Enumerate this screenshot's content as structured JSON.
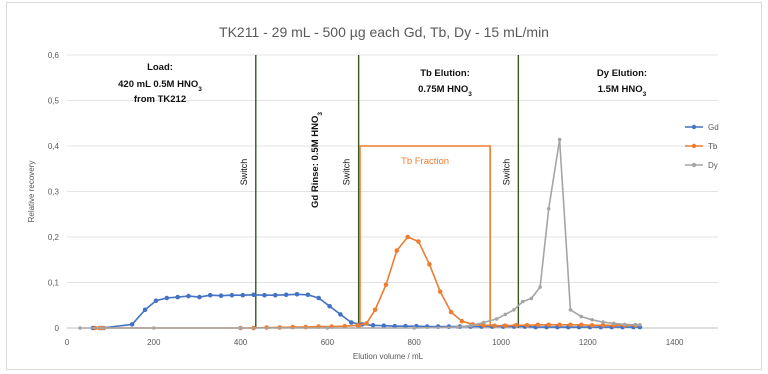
{
  "chart_data": {
    "type": "line",
    "title": "TK211 - 29 mL - 500 µg each Gd, Tb, Dy - 15 mL/min",
    "xlabel": "Elution volume / mL",
    "ylabel": "Relative recovery",
    "xlim": [
      0,
      1500
    ],
    "ylim": [
      0,
      0.6
    ],
    "x_ticks": [
      "0",
      "200",
      "400",
      "600",
      "800",
      "1000",
      "1200",
      "1400"
    ],
    "y_ticks": [
      "0",
      "0,1",
      "0,2",
      "0,3",
      "0,4",
      "0,5",
      "0,6"
    ],
    "grid": "horizontal",
    "legend_position": "right",
    "series": [
      {
        "name": "Gd",
        "color": "#4472C4",
        "points": [
          [
            60,
            0.0
          ],
          [
            80,
            0.0
          ],
          [
            150,
            0.008
          ],
          [
            180,
            0.04
          ],
          [
            205,
            0.06
          ],
          [
            230,
            0.066
          ],
          [
            255,
            0.068
          ],
          [
            280,
            0.07
          ],
          [
            305,
            0.068
          ],
          [
            330,
            0.072
          ],
          [
            355,
            0.071
          ],
          [
            380,
            0.072
          ],
          [
            405,
            0.072
          ],
          [
            430,
            0.073
          ],
          [
            455,
            0.072
          ],
          [
            480,
            0.072
          ],
          [
            505,
            0.073
          ],
          [
            530,
            0.074
          ],
          [
            555,
            0.073
          ],
          [
            580,
            0.066
          ],
          [
            605,
            0.048
          ],
          [
            630,
            0.03
          ],
          [
            655,
            0.012
          ],
          [
            680,
            0.008
          ],
          [
            705,
            0.006
          ],
          [
            730,
            0.005
          ],
          [
            755,
            0.004
          ],
          [
            780,
            0.004
          ],
          [
            805,
            0.004
          ],
          [
            830,
            0.003
          ],
          [
            855,
            0.003
          ],
          [
            880,
            0.003
          ],
          [
            905,
            0.003
          ],
          [
            930,
            0.003
          ],
          [
            955,
            0.003
          ],
          [
            980,
            0.003
          ],
          [
            1005,
            0.003
          ],
          [
            1030,
            0.003
          ],
          [
            1055,
            0.003
          ],
          [
            1080,
            0.002
          ],
          [
            1105,
            0.002
          ],
          [
            1130,
            0.002
          ],
          [
            1155,
            0.002
          ],
          [
            1180,
            0.002
          ],
          [
            1205,
            0.002
          ],
          [
            1230,
            0.002
          ],
          [
            1255,
            0.002
          ],
          [
            1280,
            0.002
          ],
          [
            1305,
            0.002
          ],
          [
            1320,
            0.002
          ]
        ]
      },
      {
        "name": "Tb",
        "color": "#ED7D31",
        "points": [
          [
            65,
            0.0
          ],
          [
            75,
            0.0
          ],
          [
            85,
            0.0
          ],
          [
            400,
            0.0
          ],
          [
            430,
            0.0
          ],
          [
            460,
            0.001
          ],
          [
            490,
            0.001
          ],
          [
            520,
            0.002
          ],
          [
            550,
            0.002
          ],
          [
            580,
            0.003
          ],
          [
            610,
            0.003
          ],
          [
            640,
            0.004
          ],
          [
            670,
            0.006
          ],
          [
            690,
            0.01
          ],
          [
            710,
            0.04
          ],
          [
            735,
            0.095
          ],
          [
            760,
            0.17
          ],
          [
            785,
            0.2
          ],
          [
            810,
            0.19
          ],
          [
            835,
            0.14
          ],
          [
            860,
            0.08
          ],
          [
            885,
            0.035
          ],
          [
            910,
            0.015
          ],
          [
            935,
            0.008
          ],
          [
            960,
            0.006
          ],
          [
            985,
            0.005
          ],
          [
            1010,
            0.005
          ],
          [
            1035,
            0.006
          ],
          [
            1060,
            0.006
          ],
          [
            1085,
            0.007
          ],
          [
            1110,
            0.007
          ],
          [
            1135,
            0.007
          ],
          [
            1160,
            0.007
          ],
          [
            1185,
            0.007
          ],
          [
            1210,
            0.006
          ],
          [
            1235,
            0.006
          ],
          [
            1260,
            0.006
          ],
          [
            1285,
            0.006
          ],
          [
            1310,
            0.006
          ]
        ]
      },
      {
        "name": "Dy",
        "color": "#A5A5A5",
        "points": [
          [
            30,
            0.0
          ],
          [
            80,
            0.0
          ],
          [
            200,
            0.0
          ],
          [
            400,
            0.0
          ],
          [
            600,
            0.0
          ],
          [
            800,
            0.0
          ],
          [
            900,
            0.002
          ],
          [
            930,
            0.005
          ],
          [
            960,
            0.012
          ],
          [
            990,
            0.02
          ],
          [
            1010,
            0.03
          ],
          [
            1030,
            0.04
          ],
          [
            1050,
            0.058
          ],
          [
            1070,
            0.065
          ],
          [
            1090,
            0.09
          ],
          [
            1110,
            0.262
          ],
          [
            1135,
            0.414
          ],
          [
            1160,
            0.04
          ],
          [
            1185,
            0.025
          ],
          [
            1210,
            0.018
          ],
          [
            1235,
            0.013
          ],
          [
            1260,
            0.01
          ],
          [
            1285,
            0.008
          ],
          [
            1310,
            0.007
          ],
          [
            1320,
            0.007
          ]
        ]
      }
    ],
    "vertical_lines": [
      {
        "x": 435,
        "label": "Switch",
        "color": "#375623"
      },
      {
        "x": 672,
        "label": "Switch",
        "color": "#375623"
      },
      {
        "x": 1040,
        "label": "Switch",
        "color": "#375623"
      }
    ],
    "fraction_box": {
      "x0": 675,
      "x1": 975,
      "y": 0.4,
      "label": "Tb Fraction",
      "color": "#ED7D31"
    },
    "annotations": {
      "load": [
        "Load:",
        "420 mL 0.5M HNO",
        "from TK212"
      ],
      "load_subscript": "3",
      "gd_rinse": "Gd Rinse: 0.5M HNO",
      "gd_rinse_subscript": "3",
      "tb_elution": [
        "Tb Elution:",
        "0.75M HNO"
      ],
      "tb_elution_subscript": "3",
      "dy_elution": [
        "Dy Elution:",
        "1.5M HNO"
      ],
      "dy_elution_subscript": "3"
    }
  }
}
